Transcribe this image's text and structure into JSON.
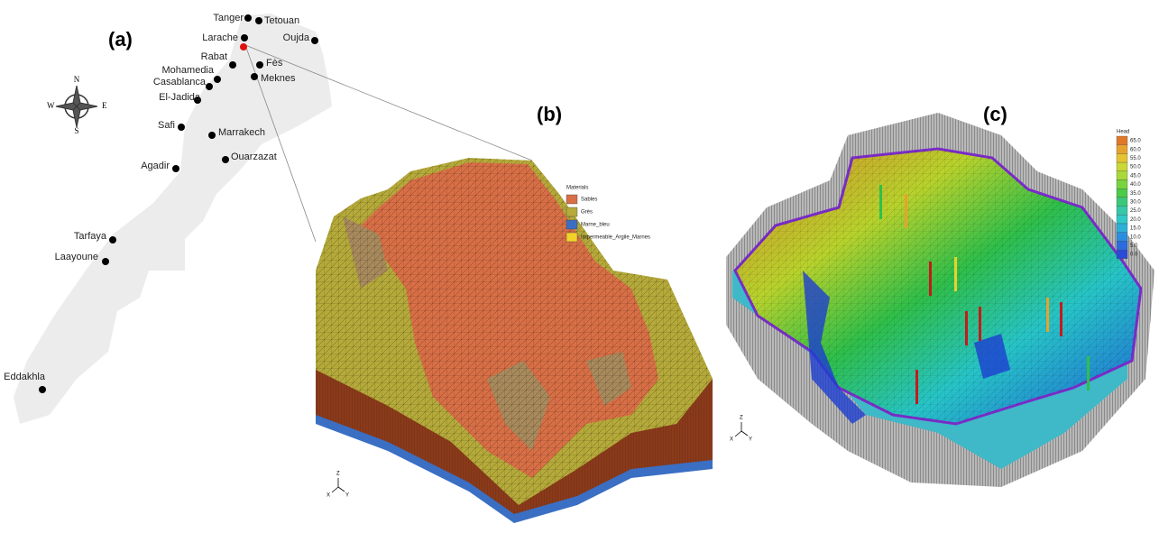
{
  "panels": {
    "a": "(a)",
    "b": "(b)",
    "c": "(c)"
  },
  "map": {
    "compass": {
      "n": "N",
      "s": "S",
      "e": "E",
      "w": "W"
    },
    "cities": [
      "Tanger",
      "Tetouan",
      "Larache",
      "Oujda",
      "Rabat",
      "Fès",
      "Mohamedia",
      "Meknes",
      "Casablanca",
      "El-Jadida",
      "Safi",
      "Marrakech",
      "Ouarzazat",
      "Agadir",
      "Tarfaya",
      "Laayoune",
      "Eddakhla"
    ]
  },
  "materials": {
    "title": "Materials",
    "items": [
      "Sables",
      "Grès",
      "Marne_bleu",
      "Impermeable_Argile_Marnes"
    ]
  },
  "head": {
    "title": "Head",
    "items": [
      "65.0",
      "60.0",
      "55.0",
      "50.0",
      "45.0",
      "40.0",
      "35.0",
      "30.0",
      "25.0",
      "20.0",
      "15.0",
      "10.0",
      "5.0",
      "0.0"
    ]
  },
  "axes": {
    "z": "Z",
    "x": "X",
    "y": "Y"
  }
}
